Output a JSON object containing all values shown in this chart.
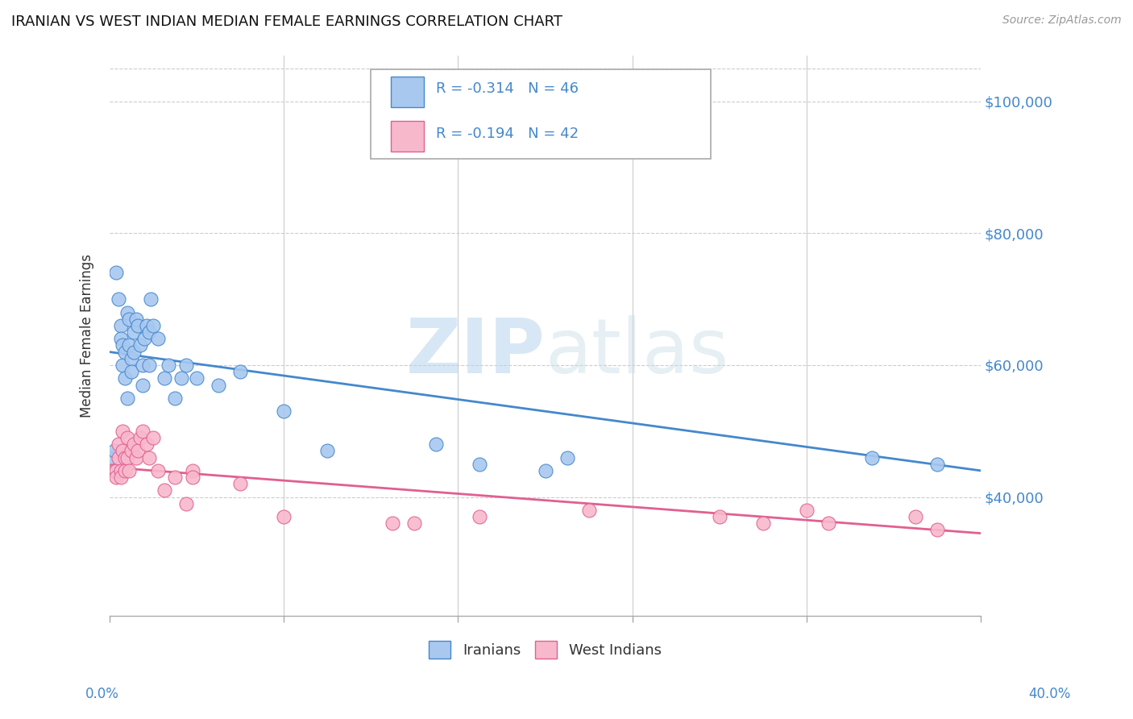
{
  "title": "IRANIAN VS WEST INDIAN MEDIAN FEMALE EARNINGS CORRELATION CHART",
  "source": "Source: ZipAtlas.com",
  "ylabel": "Median Female Earnings",
  "y_tick_labels": [
    "$40,000",
    "$60,000",
    "$80,000",
    "$100,000"
  ],
  "y_tick_values": [
    40000,
    60000,
    80000,
    100000
  ],
  "y_min": 22000,
  "y_max": 107000,
  "x_min": 0.0,
  "x_max": 0.4,
  "color_iranian": "#a8c8f0",
  "color_westindian": "#f8b8cc",
  "color_line_iranian": "#4488cc",
  "color_line_westindian": "#e06090",
  "color_text_blue": "#4488cc",
  "watermark": "ZIPatlas",
  "iranians_x": [
    0.001,
    0.002,
    0.003,
    0.004,
    0.005,
    0.005,
    0.006,
    0.006,
    0.007,
    0.007,
    0.008,
    0.008,
    0.009,
    0.009,
    0.01,
    0.01,
    0.011,
    0.011,
    0.012,
    0.013,
    0.014,
    0.015,
    0.015,
    0.016,
    0.017,
    0.018,
    0.018,
    0.019,
    0.02,
    0.022,
    0.025,
    0.027,
    0.03,
    0.033,
    0.035,
    0.04,
    0.05,
    0.06,
    0.08,
    0.1,
    0.15,
    0.17,
    0.2,
    0.21,
    0.35,
    0.38
  ],
  "iranians_y": [
    46000,
    47000,
    74000,
    70000,
    66000,
    64000,
    63000,
    60000,
    62000,
    58000,
    68000,
    55000,
    67000,
    63000,
    61000,
    59000,
    65000,
    62000,
    67000,
    66000,
    63000,
    60000,
    57000,
    64000,
    66000,
    65000,
    60000,
    70000,
    66000,
    64000,
    58000,
    60000,
    55000,
    58000,
    60000,
    58000,
    57000,
    59000,
    53000,
    47000,
    48000,
    45000,
    44000,
    46000,
    46000,
    45000
  ],
  "westindians_x": [
    0.001,
    0.002,
    0.003,
    0.003,
    0.004,
    0.004,
    0.005,
    0.005,
    0.006,
    0.006,
    0.007,
    0.007,
    0.008,
    0.008,
    0.009,
    0.01,
    0.011,
    0.012,
    0.013,
    0.014,
    0.015,
    0.017,
    0.018,
    0.02,
    0.022,
    0.025,
    0.03,
    0.035,
    0.038,
    0.038,
    0.06,
    0.08,
    0.13,
    0.14,
    0.17,
    0.22,
    0.28,
    0.3,
    0.32,
    0.33,
    0.37,
    0.38
  ],
  "westindians_y": [
    44000,
    44000,
    44000,
    43000,
    48000,
    46000,
    44000,
    43000,
    50000,
    47000,
    46000,
    44000,
    49000,
    46000,
    44000,
    47000,
    48000,
    46000,
    47000,
    49000,
    50000,
    48000,
    46000,
    49000,
    44000,
    41000,
    43000,
    39000,
    44000,
    43000,
    42000,
    37000,
    36000,
    36000,
    37000,
    38000,
    37000,
    36000,
    38000,
    36000,
    37000,
    35000
  ]
}
